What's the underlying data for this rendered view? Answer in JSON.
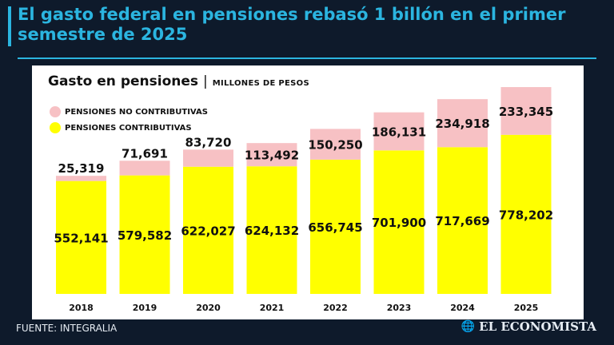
{
  "header": {
    "title": "El gasto federal en pensiones rebasó 1 billón en el primer semestre de 2025"
  },
  "chart_data": {
    "type": "bar",
    "stacked": true,
    "title": "Gasto en pensiones",
    "subtitle": "MILLONES DE PESOS",
    "categories": [
      "2018",
      "2019",
      "2020",
      "2021",
      "2022",
      "2023",
      "2024",
      "2025"
    ],
    "series": [
      {
        "name": "PENSIONES CONTRIBUTIVAS",
        "color": "#ffff00",
        "values": [
          552141,
          579582,
          622027,
          624132,
          656745,
          701900,
          717669,
          778202
        ],
        "labels": [
          "552,141",
          "579,582",
          "622,027",
          "624,132",
          "656,745",
          "701,900",
          "717,669",
          "778,202"
        ]
      },
      {
        "name": "PENSIONES NO CONTRIBUTIVAS",
        "color": "#f7c1c4",
        "values": [
          25319,
          71691,
          83720,
          113492,
          150250,
          186131,
          234918,
          233345
        ],
        "labels": [
          "25,319",
          "71,691",
          "83,720",
          "113,492",
          "150,250",
          "186,131",
          "234,918",
          "233,345"
        ]
      }
    ],
    "legend_position": "top-left",
    "grid": false
  },
  "footer": {
    "source": "FUENTE: INTEGRALIA",
    "brand": "EL ECONOMISTA",
    "brand_icon": "globe-icon"
  }
}
